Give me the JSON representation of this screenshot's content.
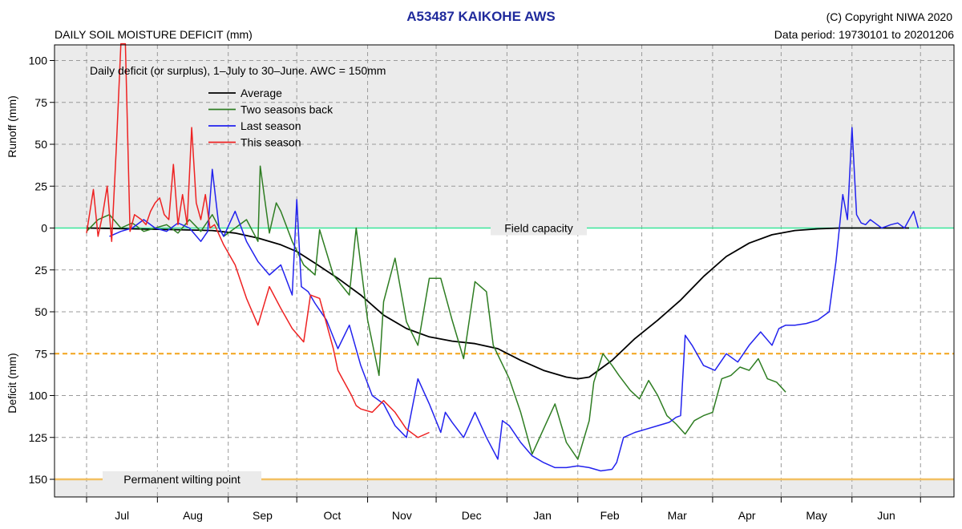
{
  "header": {
    "title": "A53487  KAIKOHE AWS",
    "subtitle": "DAILY SOIL MOISTURE DEFICIT (mm)",
    "copyright": "(C) Copyright NIWA  2020",
    "data_period": "Data period:  19730101  to  20201206"
  },
  "chart_data": {
    "type": "line",
    "title": "A53487  KAIKOHE AWS",
    "subtitle": "DAILY SOIL MOISTURE DEFICIT (mm)",
    "note": "Daily deficit (or surplus), 1–July to 30–June.  AWC = 150mm",
    "ylabel_top": "Runoff (mm)",
    "ylabel_bottom": "Deficit (mm)",
    "x_unit": "day of season from 1 July",
    "xlim": [
      -25,
      375
    ],
    "months": [
      "Jul",
      "Aug",
      "Sep",
      "Oct",
      "Nov",
      "Dec",
      "Jan",
      "Feb",
      "Mar",
      "Apr",
      "May",
      "Jun"
    ],
    "month_boundaries_day": [
      0,
      31,
      62,
      92,
      123,
      153,
      184,
      215,
      243,
      274,
      304,
      335,
      365
    ],
    "y_ticks_runoff": [
      100,
      75,
      50,
      25
    ],
    "y_ticks_deficit": [
      0,
      25,
      50,
      75,
      100,
      125,
      150
    ],
    "ylim": [
      -110,
      160
    ],
    "grid": true,
    "legend_position": "top-left",
    "reference_lines": [
      {
        "name": "Field capacity",
        "value": 0,
        "color": "#39e69a"
      },
      {
        "name": "",
        "value": 75,
        "color": "#f3a41a"
      },
      {
        "name": "Permanent wilting point",
        "value": 150,
        "color": "#f2c063"
      }
    ],
    "series": [
      {
        "name": "Average",
        "color": "#000000",
        "x": [
          0,
          20,
          40,
          55,
          65,
          75,
          85,
          92,
          100,
          110,
          120,
          130,
          140,
          150,
          160,
          170,
          180,
          190,
          200,
          210,
          215,
          220,
          230,
          240,
          250,
          260,
          270,
          280,
          290,
          300,
          310,
          320,
          330,
          340,
          350,
          360
        ],
        "y": [
          0,
          0.5,
          1,
          1.5,
          3,
          6,
          10,
          14,
          21,
          30,
          40,
          52,
          60,
          65,
          67.5,
          69,
          72,
          79,
          85,
          89,
          90,
          89,
          79,
          66,
          55,
          43,
          29,
          17,
          9,
          4,
          1.5,
          0.5,
          0,
          0,
          0,
          0
        ]
      },
      {
        "name": "Two seasons back",
        "color": "#2e7d22",
        "x": [
          0,
          5,
          10,
          15,
          20,
          25,
          30,
          35,
          40,
          45,
          50,
          55,
          60,
          65,
          70,
          75,
          76,
          80,
          83,
          85,
          90,
          95,
          100,
          102,
          108,
          115,
          118,
          123,
          128,
          130,
          135,
          140,
          145,
          150,
          155,
          160,
          165,
          170,
          175,
          178,
          185,
          190,
          195,
          200,
          205,
          210,
          215,
          220,
          222,
          226,
          230,
          233,
          238,
          242,
          246,
          250,
          254,
          258,
          262,
          266,
          270,
          274,
          278,
          282,
          286,
          290,
          294,
          298,
          302,
          306
        ],
        "y": [
          2,
          -5,
          -8,
          0,
          -3,
          2,
          0,
          -2,
          3,
          -5,
          2,
          -8,
          5,
          0,
          -5,
          8,
          -37,
          3,
          -15,
          -10,
          8,
          22,
          28,
          1,
          28,
          40,
          0,
          55,
          88,
          44,
          18,
          56,
          70,
          30,
          30,
          55,
          78,
          32,
          38,
          70,
          90,
          110,
          135,
          120,
          105,
          128,
          138,
          115,
          92,
          75,
          82,
          88,
          97,
          102,
          91,
          100,
          112,
          117,
          123,
          115,
          112,
          110,
          90,
          88,
          83,
          85,
          78,
          90,
          92,
          98
        ]
      },
      {
        "name": "Last season",
        "color": "#2222ee",
        "x": [
          10,
          15,
          20,
          25,
          30,
          35,
          40,
          45,
          50,
          53,
          55,
          58,
          60,
          65,
          70,
          75,
          80,
          85,
          90,
          92,
          94,
          97,
          100,
          105,
          110,
          115,
          120,
          125,
          130,
          135,
          140,
          145,
          150,
          155,
          157,
          160,
          165,
          170,
          175,
          180,
          182,
          185,
          190,
          195,
          200,
          205,
          210,
          215,
          220,
          225,
          230,
          232,
          235,
          240,
          245,
          250,
          255,
          258,
          260,
          262,
          265,
          270,
          275,
          280,
          285,
          290,
          295,
          300,
          303,
          306,
          310,
          315,
          320,
          325,
          328,
          331,
          333,
          335,
          337,
          339,
          341,
          343,
          345,
          348,
          350,
          352,
          355,
          358,
          360,
          362,
          364
        ],
        "y": [
          5,
          2,
          0,
          -5,
          0,
          2,
          -3,
          0,
          8,
          2,
          -35,
          0,
          5,
          -10,
          8,
          20,
          28,
          22,
          40,
          -17,
          35,
          38,
          45,
          55,
          72,
          58,
          82,
          100,
          105,
          118,
          125,
          90,
          105,
          122,
          110,
          116,
          125,
          110,
          125,
          138,
          115,
          118,
          128,
          136,
          140,
          143,
          143,
          142,
          143,
          145,
          144,
          140,
          125,
          122,
          120,
          118,
          116,
          113,
          112,
          64,
          70,
          82,
          85,
          75,
          80,
          70,
          62,
          70,
          60,
          58,
          58,
          57,
          55,
          50,
          20,
          -20,
          -5,
          -60,
          -8,
          -3,
          -2,
          -5,
          -3,
          0,
          -1,
          -2,
          -3,
          0,
          -5,
          -10,
          0
        ]
      },
      {
        "name": "This season",
        "color": "#ee2222",
        "x": [
          0,
          3,
          5,
          7,
          9,
          11,
          13,
          15,
          17,
          19,
          21,
          24,
          26,
          28,
          30,
          32,
          34,
          36,
          38,
          40,
          42,
          44,
          46,
          48,
          50,
          52,
          54,
          56,
          60,
          65,
          70,
          75,
          80,
          85,
          90,
          95,
          98,
          102,
          108,
          110,
          112,
          114,
          116,
          118,
          120,
          125,
          130,
          135,
          140,
          145,
          150
        ],
        "y": [
          3,
          -23,
          5,
          -8,
          -25,
          8,
          -48,
          -110,
          -110,
          2,
          -8,
          -5,
          -2,
          -10,
          -15,
          -18,
          -8,
          -5,
          -38,
          -2,
          -20,
          -2,
          -60,
          -15,
          -5,
          -20,
          0,
          -2,
          10,
          22,
          42,
          58,
          35,
          48,
          60,
          68,
          40,
          42,
          72,
          85,
          90,
          95,
          100,
          106,
          108,
          110,
          103,
          110,
          120,
          125,
          122
        ]
      }
    ]
  }
}
